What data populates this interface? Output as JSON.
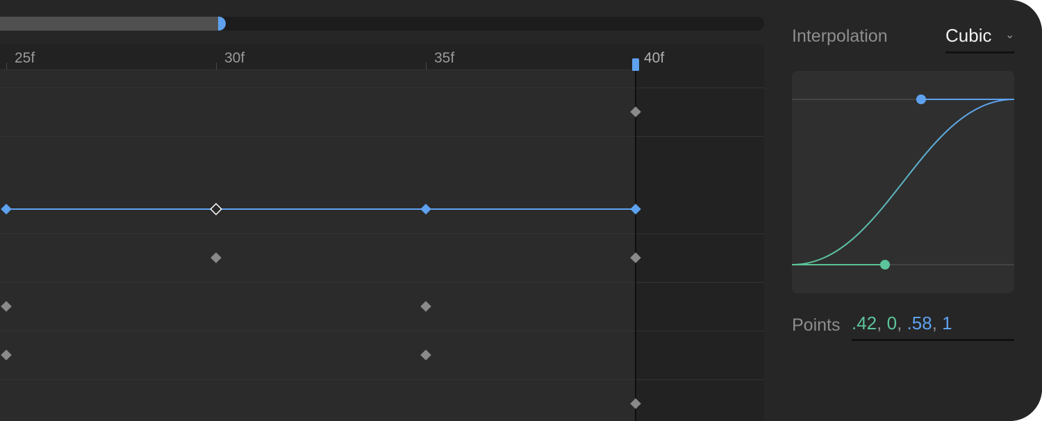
{
  "scrubber": {
    "progress": 0.29
  },
  "ruler": {
    "ticks": [
      "25f",
      "30f",
      "35f",
      "40f"
    ]
  },
  "playhead": {
    "frame": 40
  },
  "keyframes": {
    "rows": [
      {
        "frames": [
          40
        ],
        "selected": false
      },
      {
        "frames": [
          24,
          30,
          35,
          40
        ],
        "selected": true,
        "highlight_frame": 30
      },
      {
        "frames": [
          30,
          40
        ],
        "selected": false
      },
      {
        "frames": [
          24,
          35
        ],
        "selected": false
      },
      {
        "frames": [
          24,
          35
        ],
        "selected": false
      },
      {
        "frames": [
          40
        ],
        "selected": false
      }
    ]
  },
  "panel": {
    "interpolation_label": "Interpolation",
    "interpolation_value": "Cubic",
    "points_label": "Points",
    "points": {
      "x1": ".42",
      "y1": "0",
      "x2": ".58",
      "y2": "1",
      "sep": ", "
    }
  },
  "colors": {
    "accent": "#5ea2ef",
    "secondary": "#5cc49a",
    "keyframe": "#8a8a8a"
  }
}
